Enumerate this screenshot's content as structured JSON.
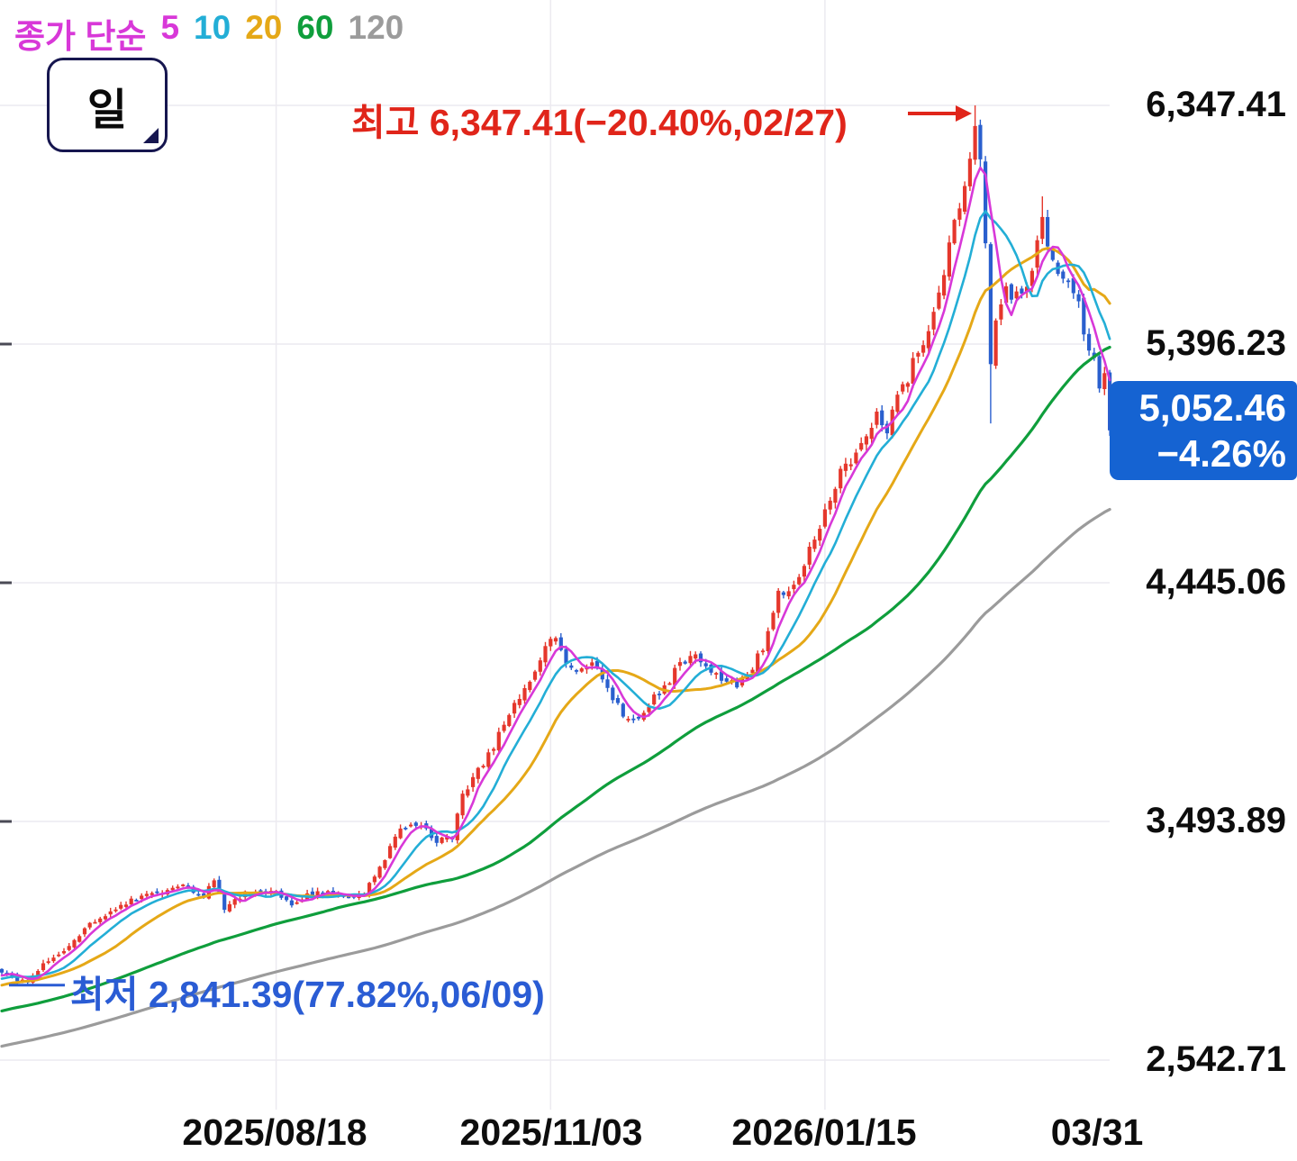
{
  "legend": {
    "label": "종가 단순",
    "items": [
      {
        "period": "5",
        "color": "#d838d8"
      },
      {
        "period": "10",
        "color": "#23aed6"
      },
      {
        "period": "20",
        "color": "#e5a817"
      },
      {
        "period": "60",
        "color": "#0f9e3c"
      },
      {
        "period": "120",
        "color": "#9b9b9b"
      }
    ]
  },
  "timeframe_button": {
    "label": "일"
  },
  "annotations": {
    "high": {
      "text": "최고 6,347.41(−20.40%,02/27)",
      "value": 6347.41,
      "pct": "−20.40%",
      "date": "02/27",
      "color": "#e0251a"
    },
    "low": {
      "text": "최저 2,841.39(77.82%,06/09)",
      "value": 2841.39,
      "pct": "77.82%",
      "date": "06/09",
      "color": "#2a5cd4"
    }
  },
  "price_badge": {
    "price": "5,052.46",
    "change": "−4.26%",
    "bg": "#1563d2"
  },
  "y_axis": {
    "labels": [
      "6,347.41",
      "5,396.23",
      "4,445.06",
      "3,493.89",
      "2,542.71"
    ],
    "values": [
      6347.41,
      5396.23,
      4445.06,
      3493.89,
      2542.71
    ]
  },
  "x_axis": {
    "labels": [
      "2025/08/18",
      "2025/11/03",
      "2026/01/15",
      "03/31"
    ]
  },
  "chart_data": {
    "type": "candlestick",
    "title": "Daily stock candlestick chart with simple moving averages of close",
    "high": {
      "value": 6347.41,
      "date": "02/27",
      "drawdown_pct": -20.4
    },
    "low": {
      "value": 2841.39,
      "date": "06/09",
      "gain_since_pct": 77.82
    },
    "last": {
      "close": 5052.46,
      "change_pct": -4.26
    },
    "moving_averages": [
      5,
      10,
      20,
      60,
      120
    ],
    "up_color": "#e5372c",
    "down_color": "#2a5fce",
    "y_gridlines": [
      6347.41,
      5396.23,
      4445.06,
      3493.89,
      2542.71
    ],
    "x_gridline_days": [
      53,
      106,
      159
    ],
    "x_label_days": [
      53,
      106,
      159,
      212
    ],
    "days_total": 215,
    "close_anchors": [
      [
        0,
        2900
      ],
      [
        3,
        2860
      ],
      [
        5,
        2855
      ],
      [
        8,
        2920
      ],
      [
        12,
        2975
      ],
      [
        17,
        3090
      ],
      [
        24,
        3170
      ],
      [
        30,
        3215
      ],
      [
        35,
        3235
      ],
      [
        39,
        3200
      ],
      [
        41,
        3265
      ],
      [
        43,
        3150
      ],
      [
        47,
        3210
      ],
      [
        53,
        3215
      ],
      [
        56,
        3150
      ],
      [
        60,
        3210
      ],
      [
        64,
        3205
      ],
      [
        69,
        3195
      ],
      [
        71,
        3240
      ],
      [
        74,
        3350
      ],
      [
        76,
        3445
      ],
      [
        79,
        3490
      ],
      [
        82,
        3465
      ],
      [
        84,
        3410
      ],
      [
        87,
        3435
      ],
      [
        89,
        3600
      ],
      [
        92,
        3695
      ],
      [
        95,
        3790
      ],
      [
        97,
        3890
      ],
      [
        100,
        3985
      ],
      [
        103,
        4090
      ],
      [
        105,
        4195
      ],
      [
        107,
        4240
      ],
      [
        109,
        4130
      ],
      [
        111,
        4095
      ],
      [
        114,
        4135
      ],
      [
        116,
        4075
      ],
      [
        118,
        3985
      ],
      [
        121,
        3895
      ],
      [
        123,
        3915
      ],
      [
        126,
        3985
      ],
      [
        129,
        4055
      ],
      [
        131,
        4125
      ],
      [
        134,
        4150
      ],
      [
        136,
        4110
      ],
      [
        139,
        4055
      ],
      [
        142,
        4040
      ],
      [
        144,
        4075
      ],
      [
        147,
        4185
      ],
      [
        149,
        4330
      ],
      [
        150,
        4420
      ],
      [
        152,
        4395
      ],
      [
        155,
        4525
      ],
      [
        157,
        4630
      ],
      [
        159,
        4720
      ],
      [
        161,
        4810
      ],
      [
        162,
        4895
      ],
      [
        164,
        4935
      ],
      [
        166,
        5010
      ],
      [
        168,
        5060
      ],
      [
        169,
        5115
      ],
      [
        171,
        5045
      ],
      [
        173,
        5190
      ],
      [
        175,
        5260
      ],
      [
        176,
        5330
      ],
      [
        178,
        5385
      ],
      [
        180,
        5545
      ],
      [
        182,
        5690
      ],
      [
        183,
        5800
      ],
      [
        185,
        5940
      ],
      [
        187,
        6120
      ],
      [
        188,
        6245
      ],
      [
        189,
        6150
      ],
      [
        190,
        5820
      ],
      [
        191,
        5300
      ],
      [
        192,
        5510
      ],
      [
        194,
        5620
      ],
      [
        195,
        5580
      ],
      [
        197,
        5600
      ],
      [
        199,
        5690
      ],
      [
        200,
        5800
      ],
      [
        201,
        5900
      ],
      [
        202,
        5800
      ],
      [
        204,
        5690
      ],
      [
        206,
        5635
      ],
      [
        208,
        5580
      ],
      [
        209,
        5435
      ],
      [
        211,
        5330
      ],
      [
        212,
        5230
      ],
      [
        213,
        5277
      ],
      [
        214,
        5052.46
      ]
    ]
  }
}
